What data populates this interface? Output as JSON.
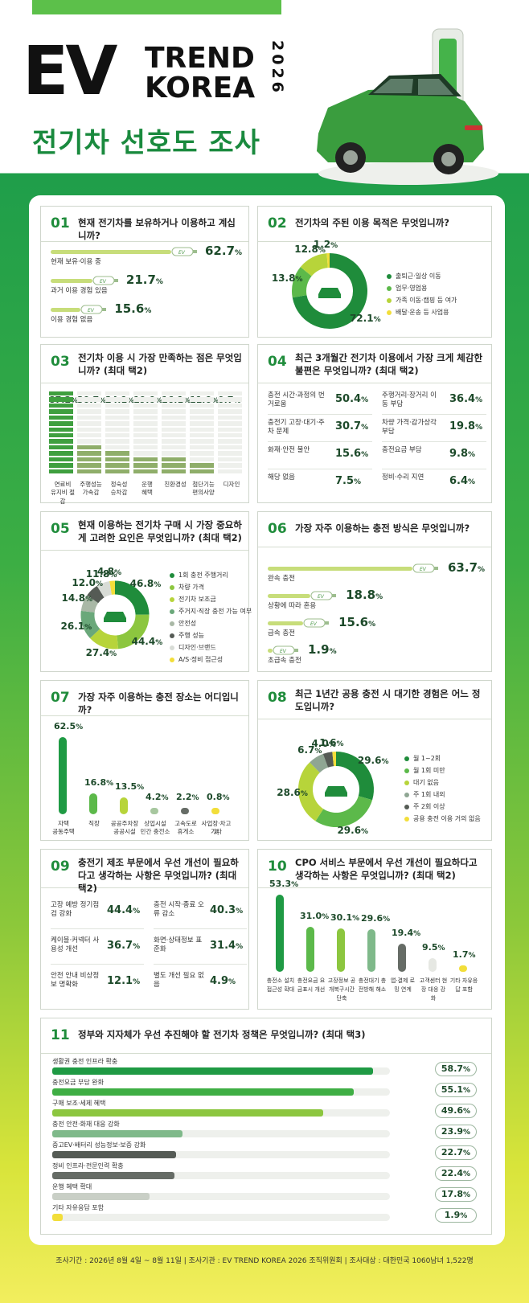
{
  "header": {
    "logo_ev": "EV",
    "logo_trend": "TREND",
    "logo_korea": "KOREA",
    "logo_year": "2026",
    "title": "전기차 선호도 조사"
  },
  "q01": {
    "num": "01",
    "text": "현재 전기차를 보유하거나 이용하고 계십니까?",
    "items": [
      {
        "label": "현재 보유·이용 중",
        "value": "62.7",
        "bar_pct": 62.7
      },
      {
        "label": "과거 이용 경험 있음",
        "value": "21.7",
        "bar_pct": 21.7
      },
      {
        "label": "이용 경험 없음",
        "value": "15.6",
        "bar_pct": 15.6
      }
    ]
  },
  "q02": {
    "num": "02",
    "text": "전기차의 주된 이용 목적은 무엇입니까?",
    "items": [
      {
        "label": "출퇴근·일상 이동",
        "value": "72.1",
        "color": "#1f8c3b"
      },
      {
        "label": "업무·영업용",
        "value": "13.8",
        "color": "#5cb94a"
      },
      {
        "label": "가족 이동·캠핑 등 여가",
        "value": "12.8",
        "color": "#b7d43a"
      },
      {
        "label": "배달·운송 등 사업용",
        "value": "1.2",
        "color": "#f2de3a"
      }
    ]
  },
  "q03": {
    "num": "03",
    "text": "전기차 이용 시 가장 만족하는 점은 무엇입니까? (최대 택2)",
    "items": [
      {
        "label1": "연료비",
        "label2": "유지비 절감",
        "value": "87.2"
      },
      {
        "label1": "주행성능",
        "label2": "가속감",
        "value": "30.7"
      },
      {
        "label1": "정숙성",
        "label2": "승차감",
        "value": "24.1"
      },
      {
        "label1": "운행",
        "label2": "혜택",
        "value": "19.0"
      },
      {
        "label1": "친환경성",
        "label2": "",
        "value": "16.1"
      },
      {
        "label1": "첨단기능",
        "label2": "편의사양",
        "value": "11.0"
      },
      {
        "label1": "디자인",
        "label2": "",
        "value": "0.7"
      }
    ]
  },
  "q04": {
    "num": "04",
    "text": "최근 3개월간 전기차 이용에서 가장 크게 체감한 불편은 무엇입니까? (최대 택2)",
    "items": [
      {
        "label": "충전 시간·과정의 번거로움",
        "value": "50.4"
      },
      {
        "label": "주행거리·장거리 이동 부담",
        "value": "36.4"
      },
      {
        "label": "충전기 고장·대기·주차 문제",
        "value": "30.7"
      },
      {
        "label": "차량 가격·감가상각 부담",
        "value": "19.8"
      },
      {
        "label": "화재·안전 불안",
        "value": "15.6"
      },
      {
        "label": "충전요금 부담",
        "value": "9.8"
      },
      {
        "label": "해당 없음",
        "value": "7.5"
      },
      {
        "label": "정비·수리 지연",
        "value": "6.4"
      }
    ]
  },
  "q05": {
    "num": "05",
    "text": "현재 이용하는 전기차 구매 시 가장 중요하게 고려한 요인은 무엇입니까? (최대 택2)",
    "items": [
      {
        "label": "1회 충전 주행거리",
        "value": "46.8",
        "color": "#1f8c3b"
      },
      {
        "label": "차량 가격",
        "value": "44.4",
        "color": "#8cc63f"
      },
      {
        "label": "전기차 보조금",
        "value": "27.4",
        "color": "#b7d43a"
      },
      {
        "label": "주거지·직장 충전 가능 여부",
        "value": "26.1",
        "color": "#6aa87a"
      },
      {
        "label": "안전성",
        "value": "14.8",
        "color": "#a9b8a6"
      },
      {
        "label": "주행 성능",
        "value": "12.0",
        "color": "#555b55"
      },
      {
        "label": "디자인·브랜드",
        "value": "11.8",
        "color": "#d8dcd6"
      },
      {
        "label": "A/S·정비 접근성",
        "value": "4.8",
        "color": "#f2de3a"
      }
    ]
  },
  "q06": {
    "num": "06",
    "text": "가장 자주 이용하는 충전 방식은 무엇입니까?",
    "items": [
      {
        "label": "완속 충전",
        "value": "63.7",
        "bar_pct": 63.7
      },
      {
        "label": "상황에 따라 혼용",
        "value": "18.8",
        "bar_pct": 18.8
      },
      {
        "label": "급속 충전",
        "value": "15.6",
        "bar_pct": 15.6
      },
      {
        "label": "초급속 충전",
        "value": "1.9",
        "bar_pct": 1.9
      }
    ]
  },
  "q07": {
    "num": "07",
    "text": "가장 자주 이용하는 충전 장소는 어디입니까?",
    "items": [
      {
        "label1": "자택",
        "label2": "공동주택",
        "value": "62.5",
        "color": "#1f9a44"
      },
      {
        "label1": "직장",
        "label2": "",
        "value": "16.8",
        "color": "#5cb94a"
      },
      {
        "label1": "공공주차장",
        "label2": "공공시설",
        "value": "13.5",
        "color": "#b7d43a"
      },
      {
        "label1": "상업시설",
        "label2": "민간 충전소",
        "value": "4.2",
        "color": "#a7c79f"
      },
      {
        "label1": "고속도로",
        "label2": "휴게소",
        "value": "2.2",
        "color": "#666c66"
      },
      {
        "label1": "사업장·차고지",
        "label2": "기타",
        "value": "0.8",
        "color": "#f2de3a"
      }
    ]
  },
  "q08": {
    "num": "08",
    "text": "최근 1년간 공용 충전 시 대기한 경험은 어느 정도입니까?",
    "items": [
      {
        "label": "월 1~2회",
        "value": "29.6",
        "color": "#1f8c3b"
      },
      {
        "label": "월 1회 미만",
        "value": "29.6",
        "color": "#5cb94a"
      },
      {
        "label": "대기 없음",
        "value": "28.6",
        "color": "#b7d43a"
      },
      {
        "label": "주 1회 내외",
        "value": "6.7",
        "color": "#8fa693"
      },
      {
        "label": "주 2회 이상",
        "value": "4.0",
        "color": "#555b55"
      },
      {
        "label": "공용 충전 이용 거의 없음",
        "value": "1.6",
        "color": "#f2de3a"
      }
    ]
  },
  "q09": {
    "num": "09",
    "text": "충전기 제조 부문에서 우선 개선이 필요하다고 생각하는 사항은 무엇입니까? (최대 택2)",
    "items": [
      {
        "label": "고장 예방 정기점검 강화",
        "value": "44.4"
      },
      {
        "label": "충전 시작·종료 오류 감소",
        "value": "40.3"
      },
      {
        "label": "케이블·커넥터 사용성 개선",
        "value": "36.7"
      },
      {
        "label": "화면·상태정보 표준화",
        "value": "31.4"
      },
      {
        "label": "안전 안내 비상정보 명확화",
        "value": "12.1"
      },
      {
        "label": "별도 개선 필요 없음",
        "value": "4.9"
      }
    ]
  },
  "q10": {
    "num": "10",
    "text": "CPO 서비스 부문에서 우선 개선이 필요하다고 생각하는 사항은 무엇입니까? (최대 택2)",
    "items": [
      {
        "label": "충전소 설치 접근성 확대",
        "value": "53.3",
        "color": "#1f9a44"
      },
      {
        "label": "충전요금 요금표시 개선",
        "value": "31.0",
        "color": "#5cb94a"
      },
      {
        "label": "고장정보 공개복구시간 단축",
        "value": "30.1",
        "color": "#8cc63f"
      },
      {
        "label": "충전대기 충전방해 해소",
        "value": "29.6",
        "color": "#7fb98a"
      },
      {
        "label": "앱·결제 로밍 연계",
        "value": "19.4",
        "color": "#666c66"
      },
      {
        "label": "고객센터 현장 대응 강화",
        "value": "9.5",
        "color": "#e6e8e3"
      },
      {
        "label": "기타 자유응답 포함",
        "value": "1.7",
        "color": "#f2de3a"
      }
    ]
  },
  "q11": {
    "num": "11",
    "text": "정부와 지자체가 우선 추진해야 할 전기차 정책은 무엇입니까? (최대 택3)",
    "items": [
      {
        "label": "생활권 충전 인프라 확충",
        "value": "58.7",
        "color": "#1f9a44"
      },
      {
        "label": "충전요금 부담 완화",
        "value": "55.1",
        "color": "#3fae44"
      },
      {
        "label": "구매 보조·세제 혜택",
        "value": "49.6",
        "color": "#8cc63f"
      },
      {
        "label": "충전 안전·화재 대응 강화",
        "value": "23.9",
        "color": "#7fb98a"
      },
      {
        "label": "중고EV·배터리 성능정보·보증 강화",
        "value": "22.7",
        "color": "#555b55"
      },
      {
        "label": "정비 인프라·전문인력 확충",
        "value": "22.4",
        "color": "#666c66"
      },
      {
        "label": "운행 혜택 확대",
        "value": "17.8",
        "color": "#c9cfc6"
      },
      {
        "label": "기타 자유응답 포함",
        "value": "1.9",
        "color": "#f2de3a"
      }
    ]
  },
  "footer": {
    "text": "조사기간 : 2026년 8월 4일 ~ 8월 11일  |  조사기관 : EV TREND KOREA 2026 조직위원회  |  조사대상 : 대한민국 1060남녀 1,522명"
  },
  "unit": "%"
}
